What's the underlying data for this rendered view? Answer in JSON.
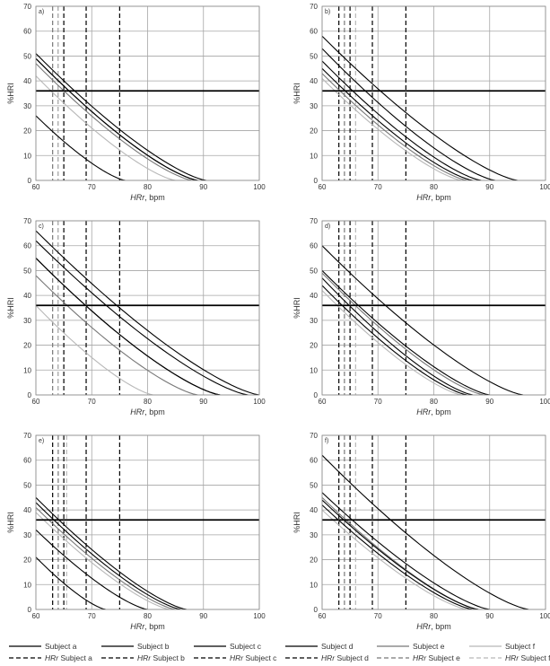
{
  "legend": [
    {
      "label": "Subject a",
      "color": "#000000",
      "dashed": false
    },
    {
      "label": "Subject b",
      "color": "#000000",
      "dashed": false
    },
    {
      "label": "Subject c",
      "color": "#000000",
      "dashed": false
    },
    {
      "label": "Subject d",
      "color": "#000000",
      "dashed": false
    },
    {
      "label": "Subject e",
      "color": "#777777",
      "dashed": false
    },
    {
      "label": "Subject f",
      "color": "#b8b8b8",
      "dashed": false
    },
    {
      "label_italic": "HRr",
      "label_rest": " Subject a",
      "color": "#000000",
      "dashed": true
    },
    {
      "label_italic": "HRr",
      "label_rest": " Subject b",
      "color": "#000000",
      "dashed": true
    },
    {
      "label_italic": "HRr",
      "label_rest": " Subject c",
      "color": "#000000",
      "dashed": true
    },
    {
      "label_italic": "HRr",
      "label_rest": " Subject d",
      "color": "#000000",
      "dashed": true
    },
    {
      "label_italic": "HRr",
      "label_rest": " Subject e",
      "color": "#777777",
      "dashed": true
    },
    {
      "label_italic": "HRr",
      "label_rest": " Subject f",
      "color": "#b8b8b8",
      "dashed": true
    }
  ],
  "chart_data": [
    {
      "panel": "a)",
      "type": "line",
      "xlabel_italic": "HRr",
      "xlabel_rest": ", bpm",
      "ylabel": "%HRI",
      "xlim": [
        60,
        100
      ],
      "ylim": [
        0,
        70
      ],
      "xticks": [
        60,
        70,
        80,
        90,
        100
      ],
      "yticks": [
        0,
        10,
        20,
        30,
        40,
        50,
        60,
        70
      ],
      "grid": true,
      "threshold": 36,
      "series": [
        {
          "name": "Subject a",
          "x": [
            60,
            90.5
          ],
          "y": [
            51,
            0
          ],
          "color": "#000000"
        },
        {
          "name": "Subject b",
          "x": [
            60,
            76
          ],
          "y": [
            26,
            0
          ],
          "color": "#000000"
        },
        {
          "name": "Subject c",
          "x": [
            60,
            89
          ],
          "y": [
            49,
            0
          ],
          "color": "#000000"
        },
        {
          "name": "Subject d",
          "x": [
            60,
            89
          ],
          "y": [
            49,
            0
          ],
          "color": "#000000"
        },
        {
          "name": "Subject e",
          "x": [
            60,
            88
          ],
          "y": [
            47,
            0
          ],
          "color": "#777777"
        },
        {
          "name": "Subject f",
          "x": [
            60,
            85
          ],
          "y": [
            42,
            0
          ],
          "color": "#b8b8b8"
        }
      ],
      "hrr": [
        {
          "name": "HRr Subject a",
          "x": 69,
          "color": "#000000"
        },
        {
          "name": "HRr Subject b",
          "x": 75,
          "color": "#000000"
        },
        {
          "name": "HRr Subject c",
          "x": 65,
          "color": "#000000"
        },
        {
          "name": "HRr Subject d",
          "x": 64,
          "color": "#000000"
        },
        {
          "name": "HRr Subject e",
          "x": 63,
          "color": "#777777"
        },
        {
          "name": "HRr Subject f",
          "x": 64,
          "color": "#b8b8b8"
        }
      ]
    },
    {
      "panel": "b)",
      "type": "line",
      "xlabel_italic": "HRr",
      "xlabel_rest": ", bpm",
      "ylabel": "%HRI",
      "xlim": [
        60,
        100
      ],
      "ylim": [
        0,
        70
      ],
      "xticks": [
        60,
        70,
        80,
        90,
        100
      ],
      "yticks": [
        0,
        10,
        20,
        30,
        40,
        50,
        60,
        70
      ],
      "grid": true,
      "threshold": 36,
      "series": [
        {
          "name": "Subject a",
          "x": [
            60,
            95
          ],
          "y": [
            58,
            0
          ],
          "color": "#000000"
        },
        {
          "name": "Subject b",
          "x": [
            60,
            91
          ],
          "y": [
            53,
            0
          ],
          "color": "#000000"
        },
        {
          "name": "Subject c",
          "x": [
            60,
            88.5
          ],
          "y": [
            48,
            0
          ],
          "color": "#000000"
        },
        {
          "name": "Subject d",
          "x": [
            60,
            87
          ],
          "y": [
            45,
            0
          ],
          "color": "#000000"
        },
        {
          "name": "Subject e",
          "x": [
            60,
            86
          ],
          "y": [
            43,
            0
          ],
          "color": "#777777"
        },
        {
          "name": "Subject f",
          "x": [
            60,
            85
          ],
          "y": [
            41,
            0
          ],
          "color": "#b8b8b8"
        }
      ],
      "hrr": [
        {
          "name": "HRr Subject a",
          "x": 69,
          "color": "#000000"
        },
        {
          "name": "HRr Subject b",
          "x": 75,
          "color": "#000000"
        },
        {
          "name": "HRr Subject c",
          "x": 65,
          "color": "#000000"
        },
        {
          "name": "HRr Subject d",
          "x": 63,
          "color": "#000000"
        },
        {
          "name": "HRr Subject e",
          "x": 64,
          "color": "#777777"
        },
        {
          "name": "HRr Subject f",
          "x": 66,
          "color": "#b8b8b8"
        }
      ]
    },
    {
      "panel": "c)",
      "type": "line",
      "xlabel_italic": "HRr",
      "xlabel_rest": ", bpm",
      "ylabel": "%HRI",
      "xlim": [
        60,
        100
      ],
      "ylim": [
        0,
        70
      ],
      "xticks": [
        60,
        70,
        80,
        90,
        100
      ],
      "yticks": [
        0,
        10,
        20,
        30,
        40,
        50,
        60,
        70
      ],
      "grid": true,
      "threshold": 36,
      "series": [
        {
          "name": "Subject a",
          "x": [
            60,
            100
          ],
          "y": [
            66,
            0
          ],
          "color": "#000000"
        },
        {
          "name": "Subject b",
          "x": [
            60,
            98
          ],
          "y": [
            62,
            0
          ],
          "color": "#000000"
        },
        {
          "name": "Subject c",
          "x": [
            60,
            93
          ],
          "y": [
            55,
            0
          ],
          "color": "#000000"
        },
        {
          "name": "Subject d",
          "x": [
            60,
            93
          ],
          "y": [
            55,
            0
          ],
          "color": "#000000"
        },
        {
          "name": "Subject e",
          "x": [
            60,
            89
          ],
          "y": [
            48,
            0
          ],
          "color": "#777777"
        },
        {
          "name": "Subject f",
          "x": [
            60,
            81
          ],
          "y": [
            36,
            0
          ],
          "color": "#b8b8b8"
        }
      ],
      "hrr": [
        {
          "name": "HRr Subject a",
          "x": 69,
          "color": "#000000"
        },
        {
          "name": "HRr Subject b",
          "x": 75,
          "color": "#000000"
        },
        {
          "name": "HRr Subject c",
          "x": 65,
          "color": "#000000"
        },
        {
          "name": "HRr Subject d",
          "x": 64,
          "color": "#000000"
        },
        {
          "name": "HRr Subject e",
          "x": 63,
          "color": "#777777"
        },
        {
          "name": "HRr Subject f",
          "x": 64,
          "color": "#b8b8b8"
        }
      ]
    },
    {
      "panel": "d)",
      "type": "line",
      "xlabel_italic": "HRr",
      "xlabel_rest": ", bpm",
      "ylabel": "%HRI",
      "xlim": [
        60,
        100
      ],
      "ylim": [
        0,
        70
      ],
      "xticks": [
        60,
        70,
        80,
        90,
        100
      ],
      "yticks": [
        0,
        10,
        20,
        30,
        40,
        50,
        60,
        70
      ],
      "grid": true,
      "threshold": 36,
      "series": [
        {
          "name": "Subject a",
          "x": [
            60,
            96
          ],
          "y": [
            60,
            0
          ],
          "color": "#000000"
        },
        {
          "name": "Subject b",
          "x": [
            60,
            90
          ],
          "y": [
            50,
            0
          ],
          "color": "#000000"
        },
        {
          "name": "Subject c",
          "x": [
            60,
            87
          ],
          "y": [
            47,
            0
          ],
          "color": "#000000"
        },
        {
          "name": "Subject d",
          "x": [
            60,
            86
          ],
          "y": [
            44,
            0
          ],
          "color": "#000000"
        },
        {
          "name": "Subject e",
          "x": [
            60,
            89
          ],
          "y": [
            49,
            0
          ],
          "color": "#777777"
        },
        {
          "name": "Subject f",
          "x": [
            60,
            85
          ],
          "y": [
            42,
            0
          ],
          "color": "#b8b8b8"
        }
      ],
      "hrr": [
        {
          "name": "HRr Subject a",
          "x": 69,
          "color": "#000000"
        },
        {
          "name": "HRr Subject b",
          "x": 75,
          "color": "#000000"
        },
        {
          "name": "HRr Subject c",
          "x": 65,
          "color": "#000000"
        },
        {
          "name": "HRr Subject d",
          "x": 63,
          "color": "#000000"
        },
        {
          "name": "HRr Subject e",
          "x": 64,
          "color": "#777777"
        },
        {
          "name": "HRr Subject f",
          "x": 66,
          "color": "#b8b8b8"
        }
      ]
    },
    {
      "panel": "e)",
      "type": "line",
      "xlabel_italic": "HRr",
      "xlabel_rest": ", bpm",
      "ylabel": "%HRI",
      "xlim": [
        60,
        100
      ],
      "ylim": [
        0,
        70
      ],
      "xticks": [
        60,
        70,
        80,
        90,
        100
      ],
      "yticks": [
        0,
        10,
        20,
        30,
        40,
        50,
        60,
        70
      ],
      "grid": true,
      "threshold": 36,
      "series": [
        {
          "name": "Subject a",
          "x": [
            60,
            87
          ],
          "y": [
            45,
            0
          ],
          "color": "#000000"
        },
        {
          "name": "Subject b",
          "x": [
            60,
            86
          ],
          "y": [
            43,
            0
          ],
          "color": "#000000"
        },
        {
          "name": "Subject c",
          "x": [
            60,
            80
          ],
          "y": [
            32,
            0
          ],
          "color": "#000000"
        },
        {
          "name": "Subject d",
          "x": [
            60,
            72.5
          ],
          "y": [
            21,
            0
          ],
          "color": "#000000"
        },
        {
          "name": "Subject e",
          "x": [
            60,
            85
          ],
          "y": [
            41,
            0
          ],
          "color": "#777777"
        },
        {
          "name": "Subject f",
          "x": [
            60,
            84
          ],
          "y": [
            39,
            0
          ],
          "color": "#b8b8b8"
        }
      ],
      "hrr": [
        {
          "name": "HRr Subject a",
          "x": 69,
          "color": "#000000"
        },
        {
          "name": "HRr Subject b",
          "x": 75,
          "color": "#000000"
        },
        {
          "name": "HRr Subject c",
          "x": 65,
          "color": "#000000"
        },
        {
          "name": "HRr Subject d",
          "x": 63,
          "color": "#000000"
        },
        {
          "name": "HRr Subject e",
          "x": 64,
          "color": "#777777"
        },
        {
          "name": "HRr Subject f",
          "x": 65.5,
          "color": "#b8b8b8"
        }
      ]
    },
    {
      "panel": "f)",
      "type": "line",
      "xlabel_italic": "HRr",
      "xlabel_rest": ", bpm",
      "ylabel": "%HRI",
      "xlim": [
        60,
        100
      ],
      "ylim": [
        0,
        70
      ],
      "xticks": [
        60,
        70,
        80,
        90,
        100
      ],
      "yticks": [
        0,
        10,
        20,
        30,
        40,
        50,
        60,
        70
      ],
      "grid": true,
      "threshold": 36,
      "series": [
        {
          "name": "Subject a",
          "x": [
            60,
            97
          ],
          "y": [
            62,
            0
          ],
          "color": "#000000"
        },
        {
          "name": "Subject b",
          "x": [
            60,
            90
          ],
          "y": [
            47,
            0
          ],
          "color": "#000000"
        },
        {
          "name": "Subject c",
          "x": [
            60,
            88
          ],
          "y": [
            44,
            0
          ],
          "color": "#000000"
        },
        {
          "name": "Subject d",
          "x": [
            60,
            87
          ],
          "y": [
            42,
            0
          ],
          "color": "#000000"
        },
        {
          "name": "Subject e",
          "x": [
            60,
            88
          ],
          "y": [
            45,
            0
          ],
          "color": "#777777"
        },
        {
          "name": "Subject f",
          "x": [
            60,
            86
          ],
          "y": [
            40,
            0
          ],
          "color": "#b8b8b8"
        }
      ],
      "hrr": [
        {
          "name": "HRr Subject a",
          "x": 69,
          "color": "#000000"
        },
        {
          "name": "HRr Subject b",
          "x": 75,
          "color": "#000000"
        },
        {
          "name": "HRr Subject c",
          "x": 65,
          "color": "#000000"
        },
        {
          "name": "HRr Subject d",
          "x": 63,
          "color": "#000000"
        },
        {
          "name": "HRr Subject e",
          "x": 64,
          "color": "#777777"
        },
        {
          "name": "HRr Subject f",
          "x": 66,
          "color": "#b8b8b8"
        }
      ]
    }
  ]
}
